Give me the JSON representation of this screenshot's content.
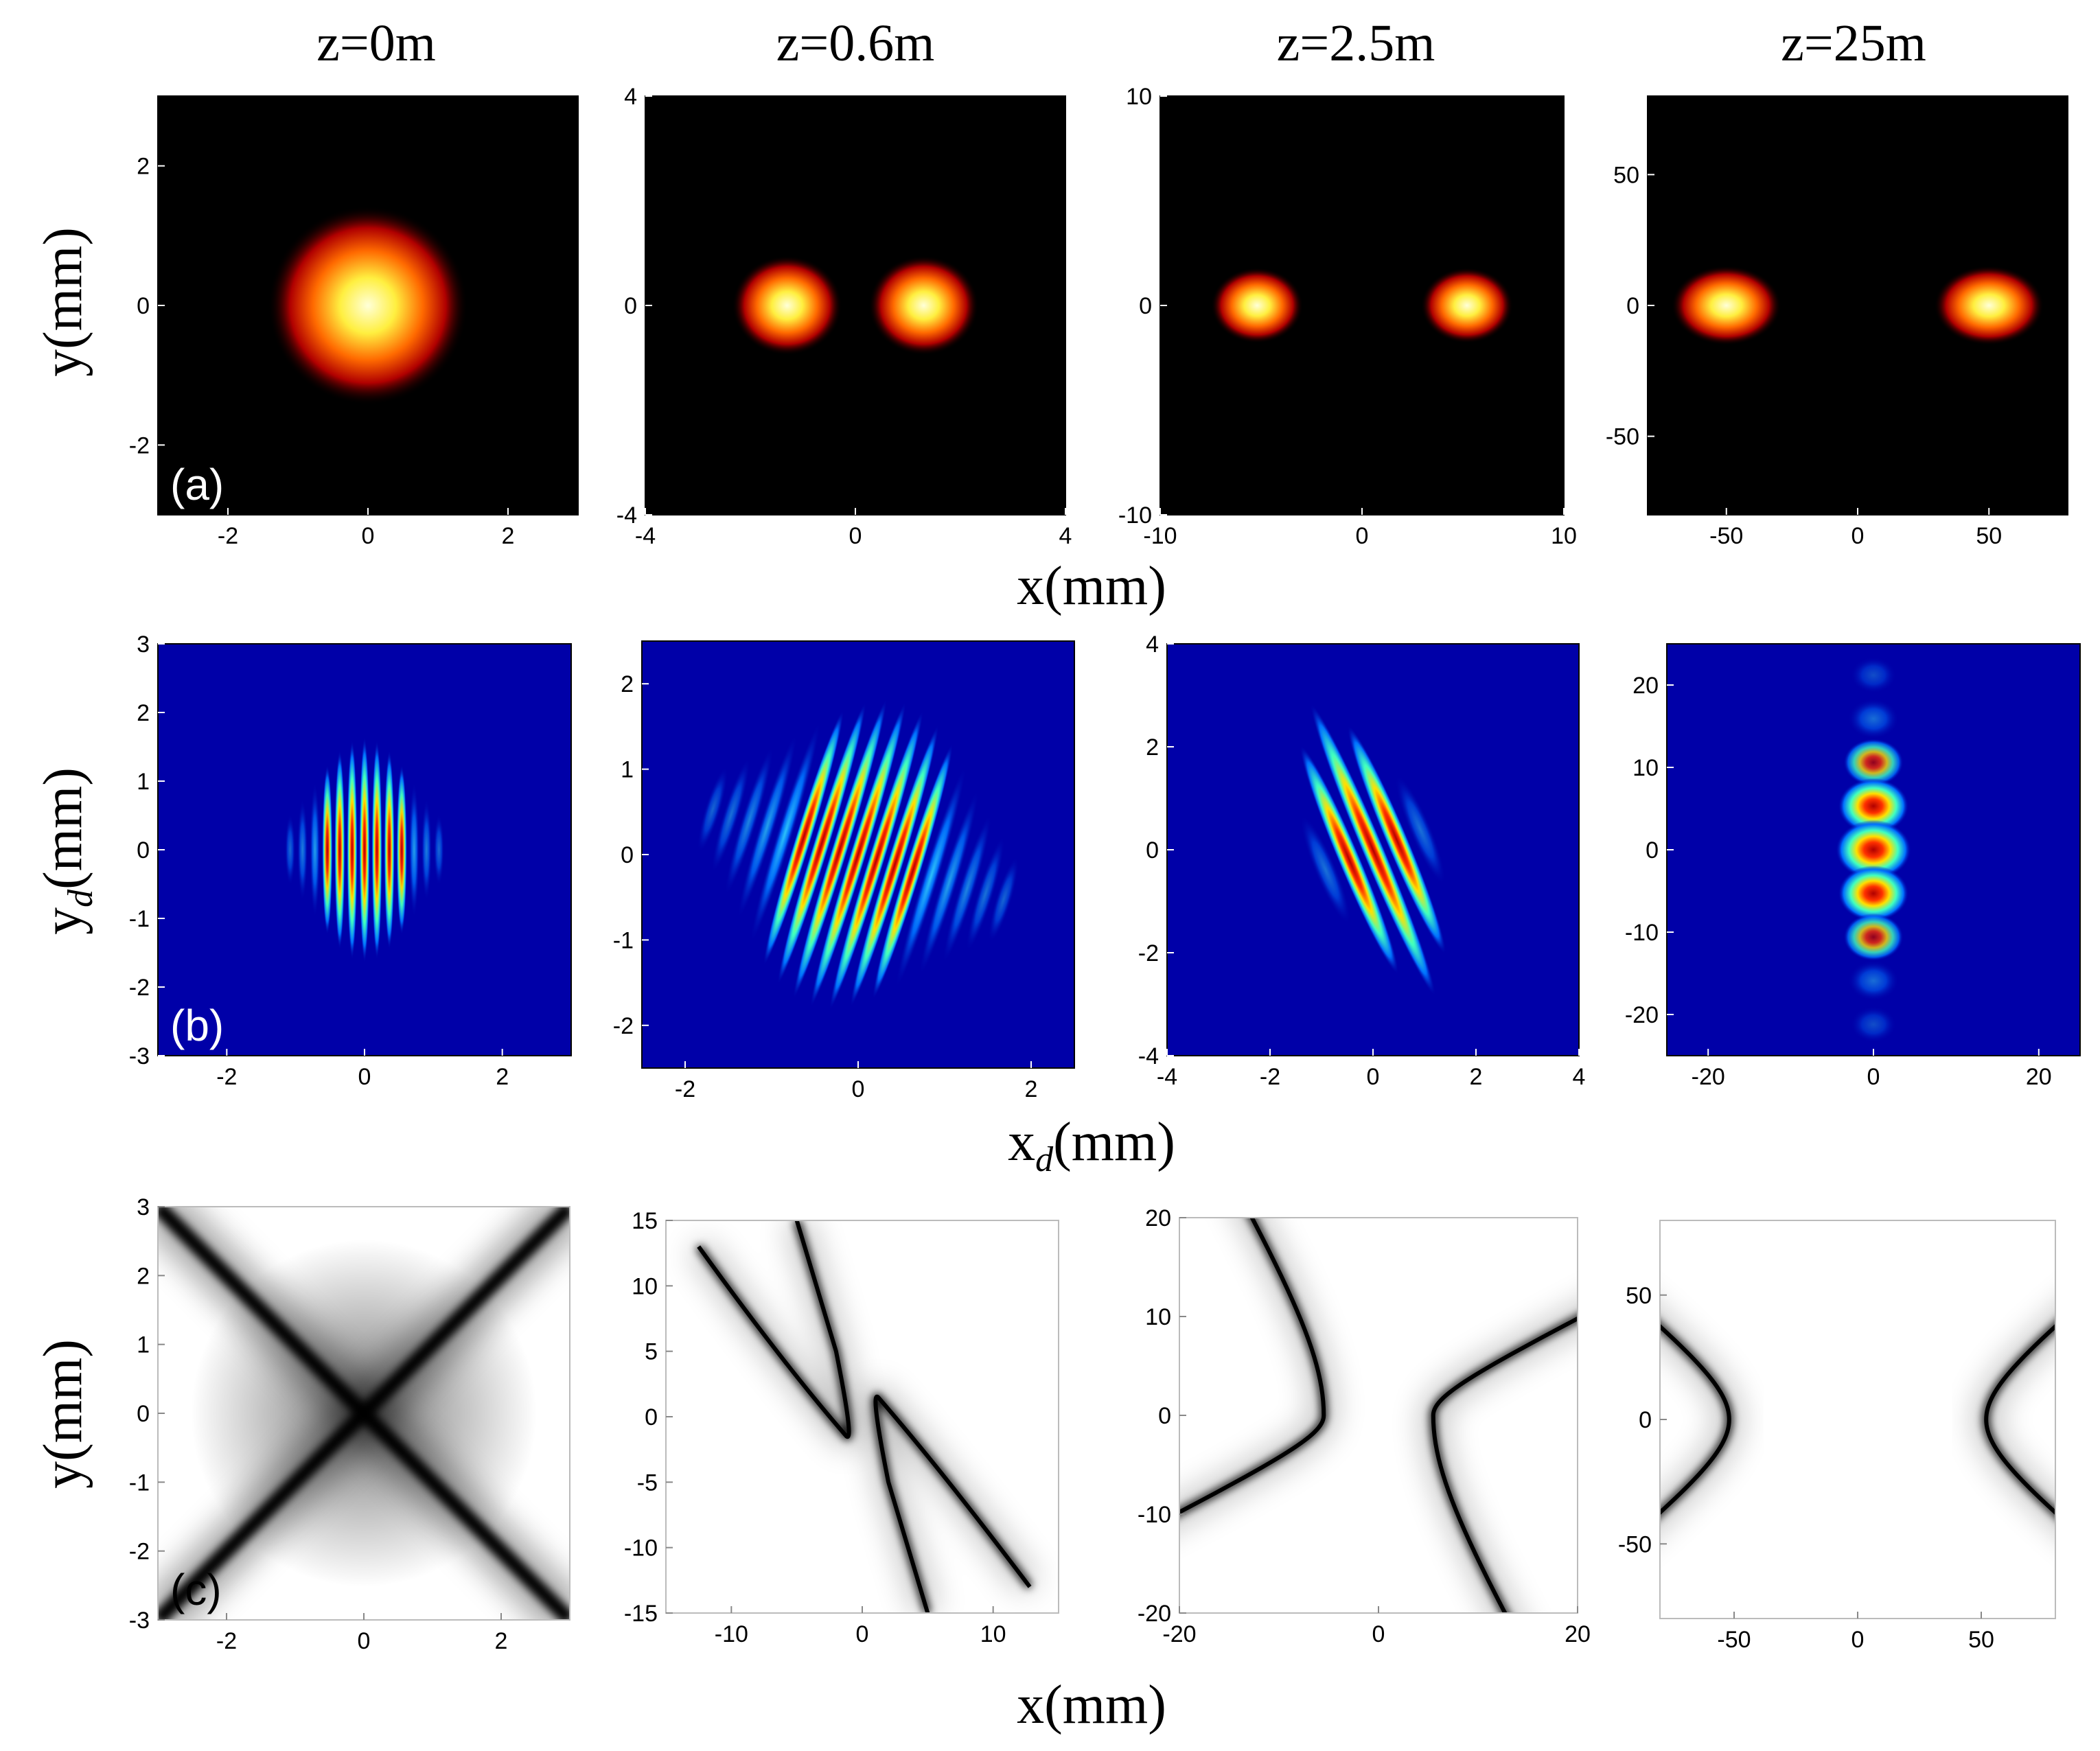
{
  "figure": {
    "column_titles": [
      "z=0m",
      "z=0.6m",
      "z=2.5m",
      "z=25m"
    ],
    "rows": [
      {
        "label": "(a)",
        "ylabel": "y(mm)",
        "xlabel": "x(mm)",
        "colormap": "hot",
        "panels": [
          {
            "xlim": [
              -3,
              3
            ],
            "ylim": [
              -3,
              3
            ],
            "xticks": [
              -2,
              0,
              2
            ],
            "yticks": [
              -2,
              0,
              2
            ],
            "beams": [
              {
                "x": 0,
                "y": 0,
                "sx": 0.75,
                "sy": 0.75
              }
            ]
          },
          {
            "xlim": [
              -4,
              4
            ],
            "ylim": [
              -4,
              4
            ],
            "xticks": [
              -4,
              0,
              4
            ],
            "yticks": [
              -4,
              0,
              4
            ],
            "beams": [
              {
                "x": -1.3,
                "y": 0,
                "sx": 0.55,
                "sy": 0.5
              },
              {
                "x": 1.3,
                "y": 0,
                "sx": 0.55,
                "sy": 0.5
              }
            ]
          },
          {
            "xlim": [
              -10,
              10
            ],
            "ylim": [
              -10,
              10
            ],
            "xticks": [
              -10,
              0,
              10
            ],
            "yticks": [
              -10,
              0,
              10
            ],
            "beams": [
              {
                "x": -5.2,
                "y": 0,
                "sx": 1.2,
                "sy": 0.95
              },
              {
                "x": 5.2,
                "y": 0,
                "sx": 1.2,
                "sy": 0.95
              }
            ]
          },
          {
            "xlim": [
              -80,
              80
            ],
            "ylim": [
              -80,
              80
            ],
            "xticks": [
              -50,
              0,
              50
            ],
            "yticks": [
              -50,
              0,
              50
            ],
            "beams": [
              {
                "x": -50,
                "y": 0,
                "sx": 11,
                "sy": 8
              },
              {
                "x": 50,
                "y": 0,
                "sx": 11,
                "sy": 8
              }
            ]
          }
        ]
      },
      {
        "label": "(b)",
        "ylabel": "y_d(mm)",
        "xlabel": "x_d(mm)",
        "colormap": "jet",
        "panels": [
          {
            "xlim": [
              -3,
              3
            ],
            "ylim": [
              -3,
              3
            ],
            "xticks": [
              -2,
              0,
              2
            ],
            "yticks": [
              -3,
              -2,
              -1,
              0,
              1,
              2,
              3
            ],
            "pattern": {
              "kind": "fringes",
              "sx": 0.55,
              "sy": 0.75,
              "period": 0.18,
              "angle": 0
            }
          },
          {
            "xlim": [
              -2.5,
              2.5
            ],
            "ylim": [
              -2.5,
              2.5
            ],
            "xticks": [
              -2,
              0,
              2
            ],
            "yticks": [
              -2,
              -1,
              0,
              1,
              2
            ],
            "pattern": {
              "kind": "fringes",
              "sx": 0.85,
              "sy": 0.85,
              "period": 0.22,
              "angle": -0.3
            }
          },
          {
            "xlim": [
              -4,
              4
            ],
            "ylim": [
              -4,
              4
            ],
            "xticks": [
              -4,
              -2,
              0,
              2,
              4
            ],
            "yticks": [
              -4,
              -2,
              0,
              2,
              4
            ],
            "pattern": {
              "kind": "fringes",
              "sx": 0.55,
              "sy": 1.4,
              "period": 0.5,
              "angle": 0.4
            }
          },
          {
            "xlim": [
              -25,
              25
            ],
            "ylim": [
              -25,
              25
            ],
            "xticks": [
              -20,
              0,
              20
            ],
            "yticks": [
              -20,
              -10,
              0,
              10,
              20
            ],
            "pattern": {
              "kind": "spots",
              "sx": 4,
              "sy": 11,
              "period": 5.3,
              "angle": 0
            }
          }
        ]
      },
      {
        "label": "(c)",
        "ylabel": "y(mm)",
        "xlabel": "x(mm)",
        "colormap": "gray",
        "panels": [
          {
            "xlim": [
              -3,
              3
            ],
            "ylim": [
              -3,
              3
            ],
            "xticks": [
              -2,
              0,
              2
            ],
            "yticks": [
              -3,
              -2,
              -1,
              0,
              1,
              2,
              3
            ],
            "curves": [
              {
                "kind": "x"
              }
            ]
          },
          {
            "xlim": [
              -15,
              15
            ],
            "ylim": [
              -15,
              15
            ],
            "xticks": [
              -10,
              0,
              10
            ],
            "yticks": [
              -15,
              -10,
              -5,
              0,
              5,
              10,
              15
            ],
            "curves": [
              {
                "kind": "v",
                "side": "left"
              },
              {
                "kind": "v",
                "side": "right"
              }
            ]
          },
          {
            "xlim": [
              -20,
              20
            ],
            "ylim": [
              -20,
              20
            ],
            "xticks": [
              -20,
              0,
              20
            ],
            "yticks": [
              -20,
              -10,
              0,
              10,
              20
            ],
            "curves": [
              {
                "kind": "hyper",
                "side": "left"
              },
              {
                "kind": "hyper",
                "side": "right"
              }
            ]
          },
          {
            "xlim": [
              -80,
              80
            ],
            "ylim": [
              -80,
              80
            ],
            "xticks": [
              -50,
              0,
              50
            ],
            "yticks": [
              -50,
              0,
              50
            ],
            "curves": [
              {
                "kind": "bracket",
                "side": "left"
              },
              {
                "kind": "bracket",
                "side": "right"
              }
            ]
          }
        ]
      }
    ]
  }
}
